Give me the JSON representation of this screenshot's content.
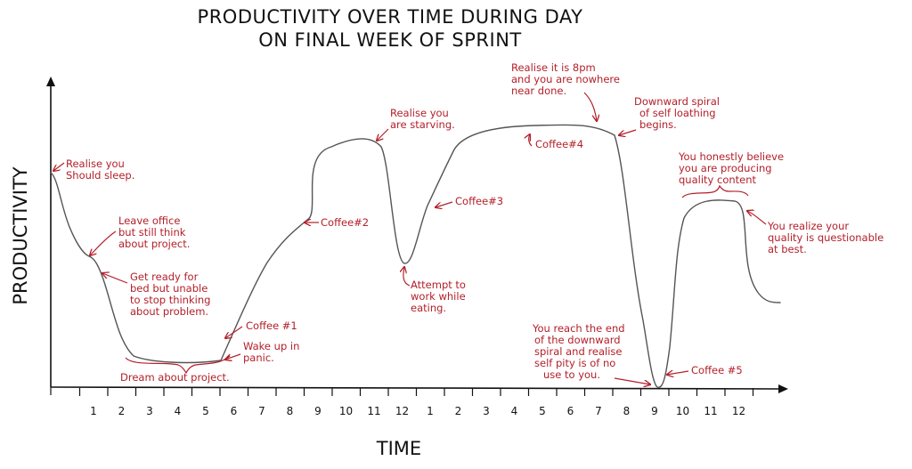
{
  "chart_data": {
    "type": "line",
    "title_line1": "PRODUCTIVITY OVER TIME DURING DAY",
    "title_line2": "ON FINAL WEEK OF SPRINT",
    "xlabel": "TIME",
    "ylabel": "PRODUCTIVITY",
    "x_tick_labels": [
      "1",
      "2",
      "3",
      "4",
      "5",
      "6",
      "7",
      "8",
      "9",
      "10",
      "11",
      "12",
      "1",
      "2",
      "3",
      "4",
      "5",
      "6",
      "7",
      "8",
      "9",
      "10",
      "11",
      "12"
    ],
    "grid": false,
    "legend": "none",
    "line_color": "#555555",
    "annotation_color": "#b3202a",
    "annotations": [
      {
        "id": "sleep",
        "lines": [
          "Realise you",
          "Should sleep."
        ]
      },
      {
        "id": "leave",
        "lines": [
          "Leave office",
          "but still think",
          "about project."
        ]
      },
      {
        "id": "bed",
        "lines": [
          "Get ready for",
          "bed but unable",
          "to stop thinking",
          "about problem."
        ]
      },
      {
        "id": "dream",
        "lines": [
          "Dream about project."
        ]
      },
      {
        "id": "coffee1",
        "lines": [
          "Coffee #1"
        ]
      },
      {
        "id": "panic",
        "lines": [
          "Wake up in",
          "panic."
        ]
      },
      {
        "id": "coffee2",
        "lines": [
          "Coffee#2"
        ]
      },
      {
        "id": "starving",
        "lines": [
          "Realise you",
          "are starving."
        ]
      },
      {
        "id": "eating",
        "lines": [
          "Attempt to",
          "work while",
          "eating."
        ]
      },
      {
        "id": "coffee3",
        "lines": [
          "Coffee#3"
        ]
      },
      {
        "id": "coffee4",
        "lines": [
          "Coffee#4"
        ]
      },
      {
        "id": "8pm",
        "lines": [
          "Realise it is 8pm",
          "and you are nowhere",
          "near done."
        ]
      },
      {
        "id": "spiral",
        "lines": [
          "Downward spiral",
          "of self loathing",
          "begins."
        ]
      },
      {
        "id": "end",
        "lines": [
          "You reach the end",
          "of the downward",
          "spiral and realise",
          "self pity is of no",
          "use to you."
        ]
      },
      {
        "id": "coffee5",
        "lines": [
          "Coffee #5"
        ]
      },
      {
        "id": "quality",
        "lines": [
          "You honestly believe",
          "you are producing",
          "quality content"
        ]
      },
      {
        "id": "questionable",
        "lines": [
          "You realize your",
          "quality is questionable",
          "at best."
        ]
      }
    ]
  }
}
